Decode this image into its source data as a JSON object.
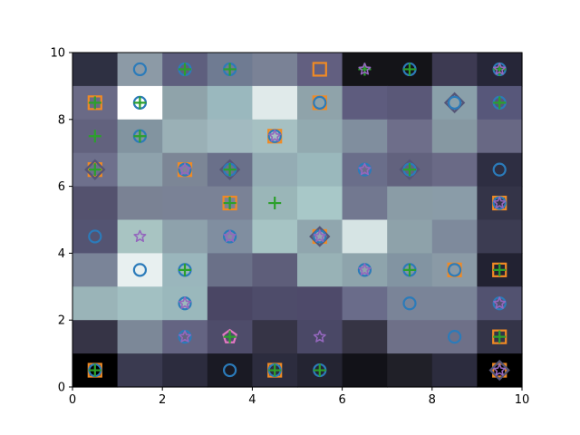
{
  "board": {
    "cols": 10,
    "rows": 10,
    "x_ticks": [
      "0",
      "2",
      "4",
      "6",
      "8",
      "10"
    ],
    "y_ticks": [
      "0",
      "2",
      "4",
      "6",
      "8",
      "10"
    ],
    "colors": {
      "circle": "#2b7bba",
      "square": "#f08a24",
      "plus": "#2ca02c",
      "star": "#9467bd",
      "diamond": "#555577",
      "pentagon": "#e377c2"
    },
    "cells": [
      [
        "#2e3042",
        "#8c9aa6",
        "#5e5f7e",
        "#6f7b92",
        "#7a8296",
        "#625f80",
        "#141418",
        "#141418",
        "#3d3a52",
        "#262638"
      ],
      [
        "#6a6a86",
        "#ffffff",
        "#8fa3aa",
        "#9ab8be",
        "#e0eaea",
        "#8fa3aa",
        "#5e5c7e",
        "#5a5878",
        "#8aa0aa",
        "#57577a"
      ],
      [
        "#62627e",
        "#8294a0",
        "#9ab0b6",
        "#a2bac0",
        "#a6c0c2",
        "#92aab0",
        "#808e9e",
        "#6e6e8a",
        "#8698a2",
        "#686884"
      ],
      [
        "#6e708c",
        "#8ea2ac",
        "#7c8696",
        "#6a708a",
        "#94acb4",
        "#9ab8bc",
        "#6a6e8a",
        "#62627e",
        "#6a6a86",
        "#2e2e42"
      ],
      [
        "#54526e",
        "#7a8294",
        "#7a8296",
        "#7a8296",
        "#9ab6b8",
        "#a8c8c8",
        "#727890",
        "#8a9ca6",
        "#8a9ca8",
        "#343448"
      ],
      [
        "#545472",
        "#a8c4c2",
        "#8ea2ac",
        "#808ea0",
        "#a6c4c4",
        "#90a6ae",
        "#d6e4e4",
        "#8ea2aa",
        "#7e8a9c",
        "#3c3c52"
      ],
      [
        "#7a8498",
        "#e8f0f0",
        "#9ab6bc",
        "#6a7088",
        "#5e5e7a",
        "#98b2b6",
        "#8ea4ac",
        "#8294a2",
        "#8a9aa6",
        "#222232"
      ],
      [
        "#9ab4b8",
        "#a2c0c2",
        "#9ab8bc",
        "#4a4664",
        "#4e4c6a",
        "#4e4a6a",
        "#6a6c8a",
        "#7a8498",
        "#7a8498",
        "#525270"
      ],
      [
        "#363446",
        "#7c8898",
        "#646482",
        "#4e4c6a",
        "#363446",
        "#4a4866",
        "#363444",
        "#6e7088",
        "#6e7088",
        "#343448"
      ],
      [
        "#000000",
        "#3a3a50",
        "#2c2c3e",
        "#1a1a24",
        "#2c2c3e",
        "#242432",
        "#121218",
        "#202028",
        "#2c2c3e",
        "#000000"
      ]
    ],
    "pieces": [
      {
        "row": 0,
        "col": 1,
        "kinds": [
          "circle"
        ]
      },
      {
        "row": 0,
        "col": 2,
        "kinds": [
          "circle",
          "plus"
        ]
      },
      {
        "row": 0,
        "col": 3,
        "kinds": [
          "circle",
          "plus"
        ]
      },
      {
        "row": 0,
        "col": 5,
        "kinds": [
          "square"
        ]
      },
      {
        "row": 0,
        "col": 6,
        "kinds": [
          "star",
          "plus"
        ]
      },
      {
        "row": 0,
        "col": 7,
        "kinds": [
          "circle",
          "plus"
        ]
      },
      {
        "row": 0,
        "col": 9,
        "kinds": [
          "circle",
          "plus",
          "star"
        ]
      },
      {
        "row": 1,
        "col": 0,
        "kinds": [
          "square",
          "plus"
        ]
      },
      {
        "row": 1,
        "col": 1,
        "kinds": [
          "circle",
          "plus"
        ]
      },
      {
        "row": 1,
        "col": 5,
        "kinds": [
          "square",
          "circle"
        ]
      },
      {
        "row": 1,
        "col": 8,
        "kinds": [
          "diamond",
          "circle"
        ]
      },
      {
        "row": 1,
        "col": 9,
        "kinds": [
          "circle",
          "plus"
        ]
      },
      {
        "row": 2,
        "col": 0,
        "kinds": [
          "plus"
        ]
      },
      {
        "row": 2,
        "col": 1,
        "kinds": [
          "circle",
          "plus"
        ]
      },
      {
        "row": 2,
        "col": 4,
        "kinds": [
          "square",
          "circle",
          "star"
        ]
      },
      {
        "row": 3,
        "col": 0,
        "kinds": [
          "square",
          "diamond",
          "plus"
        ]
      },
      {
        "row": 3,
        "col": 2,
        "kinds": [
          "square",
          "circle",
          "star"
        ]
      },
      {
        "row": 3,
        "col": 3,
        "kinds": [
          "diamond",
          "circle",
          "plus"
        ]
      },
      {
        "row": 3,
        "col": 6,
        "kinds": [
          "circle",
          "star"
        ]
      },
      {
        "row": 3,
        "col": 7,
        "kinds": [
          "diamond",
          "circle",
          "plus"
        ]
      },
      {
        "row": 3,
        "col": 9,
        "kinds": [
          "circle"
        ]
      },
      {
        "row": 4,
        "col": 3,
        "kinds": [
          "square",
          "plus"
        ]
      },
      {
        "row": 4,
        "col": 4,
        "kinds": [
          "plus"
        ]
      },
      {
        "row": 4,
        "col": 9,
        "kinds": [
          "square",
          "circle",
          "star"
        ]
      },
      {
        "row": 5,
        "col": 0,
        "kinds": [
          "circle"
        ]
      },
      {
        "row": 5,
        "col": 1,
        "kinds": [
          "star"
        ]
      },
      {
        "row": 5,
        "col": 3,
        "kinds": [
          "circle",
          "star"
        ]
      },
      {
        "row": 5,
        "col": 5,
        "kinds": [
          "square",
          "diamond",
          "circle",
          "star"
        ]
      },
      {
        "row": 6,
        "col": 1,
        "kinds": [
          "circle"
        ]
      },
      {
        "row": 6,
        "col": 2,
        "kinds": [
          "circle",
          "plus"
        ]
      },
      {
        "row": 6,
        "col": 6,
        "kinds": [
          "circle",
          "star"
        ]
      },
      {
        "row": 6,
        "col": 7,
        "kinds": [
          "circle",
          "plus"
        ]
      },
      {
        "row": 6,
        "col": 8,
        "kinds": [
          "square",
          "circle"
        ]
      },
      {
        "row": 6,
        "col": 9,
        "kinds": [
          "square",
          "plus"
        ]
      },
      {
        "row": 7,
        "col": 2,
        "kinds": [
          "circle",
          "star"
        ]
      },
      {
        "row": 7,
        "col": 7,
        "kinds": [
          "circle"
        ]
      },
      {
        "row": 7,
        "col": 9,
        "kinds": [
          "circle",
          "star"
        ]
      },
      {
        "row": 8,
        "col": 2,
        "kinds": [
          "circle",
          "star"
        ]
      },
      {
        "row": 8,
        "col": 3,
        "kinds": [
          "pentagon",
          "plus"
        ]
      },
      {
        "row": 8,
        "col": 5,
        "kinds": [
          "star"
        ]
      },
      {
        "row": 8,
        "col": 8,
        "kinds": [
          "circle"
        ]
      },
      {
        "row": 8,
        "col": 9,
        "kinds": [
          "square",
          "plus"
        ]
      },
      {
        "row": 9,
        "col": 0,
        "kinds": [
          "square",
          "circle",
          "plus"
        ]
      },
      {
        "row": 9,
        "col": 3,
        "kinds": [
          "circle"
        ]
      },
      {
        "row": 9,
        "col": 4,
        "kinds": [
          "square",
          "circle",
          "plus"
        ]
      },
      {
        "row": 9,
        "col": 5,
        "kinds": [
          "circle",
          "plus"
        ]
      },
      {
        "row": 9,
        "col": 9,
        "kinds": [
          "square",
          "diamond",
          "star"
        ]
      }
    ]
  }
}
